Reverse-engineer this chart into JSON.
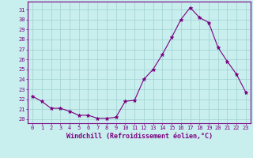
{
  "x": [
    0,
    1,
    2,
    3,
    4,
    5,
    6,
    7,
    8,
    9,
    10,
    11,
    12,
    13,
    14,
    15,
    16,
    17,
    18,
    19,
    20,
    21,
    22,
    23
  ],
  "y": [
    22.3,
    21.8,
    21.1,
    21.1,
    20.8,
    20.4,
    20.4,
    20.1,
    20.1,
    20.2,
    21.8,
    21.9,
    24.0,
    25.0,
    26.5,
    28.2,
    30.0,
    31.2,
    30.2,
    29.7,
    27.2,
    25.8,
    24.5,
    22.7
  ],
  "line_color": "#7b0080",
  "marker": "*",
  "marker_size": 3.5,
  "bg_color": "#c8eeee",
  "grid_color": "#a0d0d0",
  "xlabel": "Windchill (Refroidissement éolien,°C)",
  "ylabel_ticks": [
    20,
    21,
    22,
    23,
    24,
    25,
    26,
    27,
    28,
    29,
    30,
    31
  ],
  "ylim": [
    19.6,
    31.8
  ],
  "xlim": [
    -0.5,
    23.5
  ],
  "tick_color": "#7b0080",
  "label_color": "#7b0080",
  "spine_color": "#7b0080",
  "grid_linewidth": 0.5,
  "line_width": 0.8,
  "tick_fontsize": 5.0,
  "xlabel_fontsize": 6.0
}
